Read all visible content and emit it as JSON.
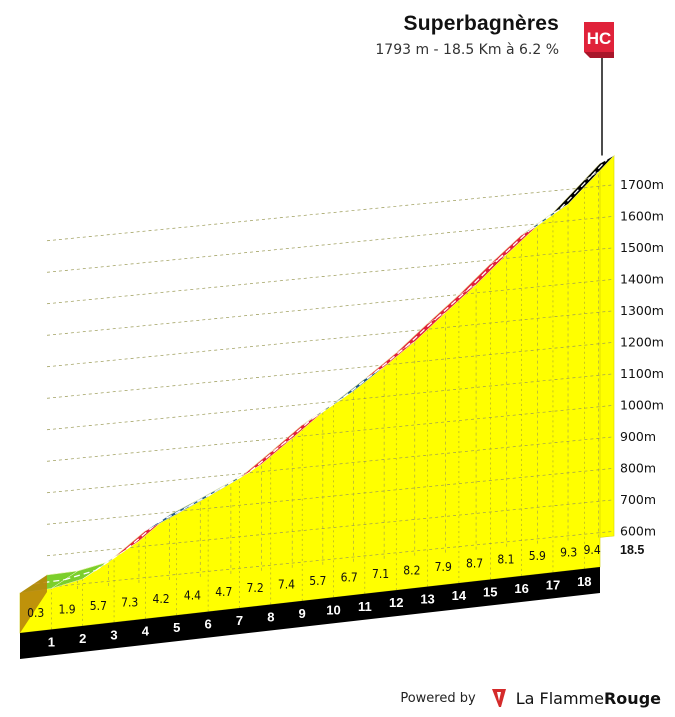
{
  "chart_data": {
    "type": "area",
    "title": "Superbagnères",
    "subtitle": "1793 m - 18.5 Km à 6.2 %",
    "category_badge": "HC",
    "distance_km": [
      0,
      1,
      2,
      3,
      4,
      5,
      6,
      7,
      8,
      9,
      10,
      11,
      12,
      13,
      14,
      15,
      16,
      17,
      18,
      18.5
    ],
    "km_labels": [
      "1",
      "2",
      "3",
      "4",
      "5",
      "6",
      "7",
      "8",
      "9",
      "10",
      "11",
      "12",
      "13",
      "14",
      "15",
      "16",
      "17",
      "18"
    ],
    "end_label": "18.5",
    "gradients": [
      0.3,
      1.9,
      5.7,
      7.3,
      4.2,
      4.4,
      4.7,
      7.2,
      7.4,
      5.7,
      6.7,
      7.1,
      8.2,
      7.9,
      8.7,
      8.1,
      5.9,
      9.3,
      9.4
    ],
    "gradient_labels": [
      "0.3",
      "1.9",
      "5.7",
      "7.3",
      "4.2",
      "4.4",
      "4.7",
      "7.2",
      "7.4",
      "5.7",
      "6.7",
      "7.1",
      "8.2",
      "7.9",
      "8.7",
      "8.1",
      "5.9",
      "9.3",
      "9.4"
    ],
    "y_ticks": [
      600,
      700,
      800,
      900,
      1000,
      1100,
      1200,
      1300,
      1400,
      1500,
      1600,
      1700
    ],
    "y_tick_labels": [
      "600m",
      "700m",
      "800m",
      "900m",
      "1000m",
      "1100m",
      "1200m",
      "1300m",
      "1400m",
      "1500m",
      "1600m",
      "1700m"
    ],
    "summit_altitude_m": 1793,
    "length_km": 18.5,
    "avg_gradient_pct": 6.2,
    "colors": {
      "profile_face": "#ffff00",
      "grid": "#9a9a55",
      "road_black": "#000000",
      "road_red": "#e0223a",
      "road_blue": "#1f5a85",
      "road_green": "#7ccf2b",
      "base_side": "#b8860b",
      "badge": "#e0223a"
    }
  },
  "footer": {
    "powered_label": "Powered by",
    "brand_light": "La Flamme",
    "brand_bold": "Rouge"
  }
}
